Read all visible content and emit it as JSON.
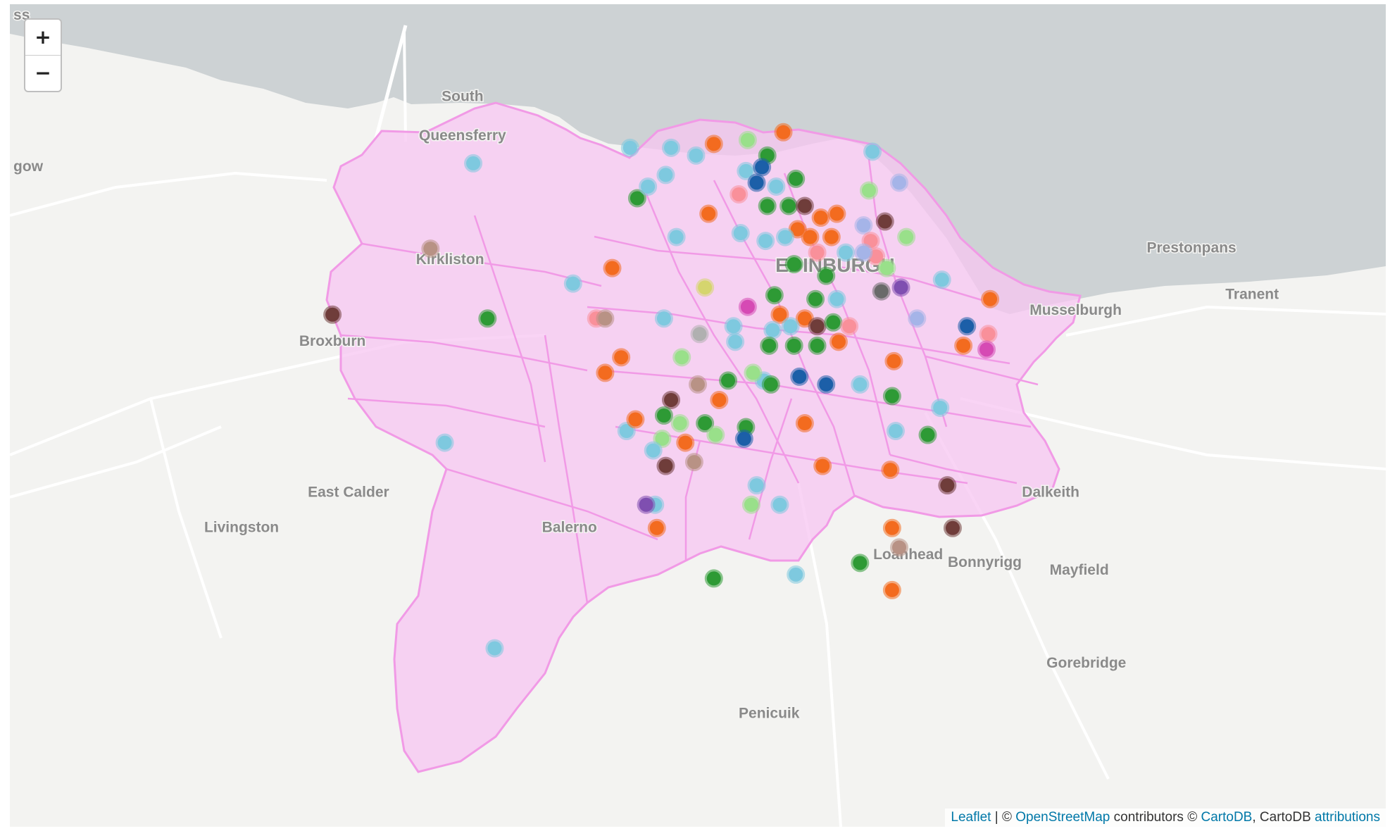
{
  "map": {
    "zoom_in_label": "+",
    "zoom_out_label": "−",
    "place_labels": [
      {
        "text": "South",
        "lon": -3.398,
        "lat": 55.997
      },
      {
        "text": "Queensferry",
        "lon": -3.398,
        "lat": 55.987
      },
      {
        "text": "Kirkliston",
        "lon": -3.405,
        "lat": 55.955
      },
      {
        "text": "Broxburn",
        "lon": -3.471,
        "lat": 55.934
      },
      {
        "text": "East Calder",
        "lon": -3.462,
        "lat": 55.895
      },
      {
        "text": "Livingston",
        "lon": -3.522,
        "lat": 55.886
      },
      {
        "text": "Balerno",
        "lon": -3.338,
        "lat": 55.886
      },
      {
        "text": "EDINBURGH",
        "lon": -3.189,
        "lat": 55.953
      },
      {
        "text": "Musselburgh",
        "lon": -3.054,
        "lat": 55.942
      },
      {
        "text": "Prestonpans",
        "lon": -2.989,
        "lat": 55.958
      },
      {
        "text": "Tranent",
        "lon": -2.955,
        "lat": 55.946
      },
      {
        "text": "Dalkeith",
        "lon": -3.068,
        "lat": 55.895
      },
      {
        "text": "Loanhead",
        "lon": -3.148,
        "lat": 55.879
      },
      {
        "text": "Bonnyrigg",
        "lon": -3.105,
        "lat": 55.877
      },
      {
        "text": "Mayfield",
        "lon": -3.052,
        "lat": 55.875
      },
      {
        "text": "Gorebridge",
        "lon": -3.048,
        "lat": 55.851
      },
      {
        "text": "Penicuik",
        "lon": -3.226,
        "lat": 55.838
      },
      {
        "text": "gow",
        "lon": -3.65,
        "lat": 55.979
      },
      {
        "text": "ss",
        "lon": -3.65,
        "lat": 56.018
      }
    ],
    "bounds": {
      "lon_min": -3.652,
      "lon_max": -2.88,
      "lat_min": 55.81,
      "lat_max": 56.022
    },
    "colors": {
      "water": "#cdd2d4",
      "land": "#f3f3f1",
      "region_fill": "#f7c6f2",
      "region_stroke": "#f19ae6",
      "marker_stroke": "#ffffff"
    },
    "markers": [
      {
        "lon": -3.392,
        "lat": 55.981,
        "c": "#7ec9df"
      },
      {
        "lon": -3.304,
        "lat": 55.985,
        "c": "#7ec9df"
      },
      {
        "lon": -3.416,
        "lat": 55.959,
        "c": "#b89285"
      },
      {
        "lon": -3.471,
        "lat": 55.942,
        "c": "#6f3d3a"
      },
      {
        "lon": -3.384,
        "lat": 55.941,
        "c": "#2e9a35"
      },
      {
        "lon": -3.408,
        "lat": 55.909,
        "c": "#7ec9df"
      },
      {
        "lon": -3.38,
        "lat": 55.856,
        "c": "#7ec9df"
      },
      {
        "lon": -3.306,
        "lat": 55.912,
        "c": "#7ec9df"
      },
      {
        "lon": -3.29,
        "lat": 55.893,
        "c": "#7ec9df"
      },
      {
        "lon": -3.229,
        "lat": 55.925,
        "c": "#7ec9df"
      },
      {
        "lon": -3.239,
        "lat": 55.913,
        "c": "#2e9a35"
      },
      {
        "lon": -3.233,
        "lat": 55.898,
        "c": "#7ec9df"
      },
      {
        "lon": -3.284,
        "lat": 55.978,
        "c": "#7ec9df"
      },
      {
        "lon": -3.3,
        "lat": 55.972,
        "c": "#2e9a35"
      },
      {
        "lon": -3.314,
        "lat": 55.954,
        "c": "#f36b1f"
      },
      {
        "lon": -3.309,
        "lat": 55.931,
        "c": "#f36b1f"
      },
      {
        "lon": -3.294,
        "lat": 55.975,
        "c": "#7ec9df"
      },
      {
        "lon": -3.281,
        "lat": 55.985,
        "c": "#7ec9df"
      },
      {
        "lon": -3.267,
        "lat": 55.983,
        "c": "#7ec9df"
      },
      {
        "lon": -3.257,
        "lat": 55.986,
        "c": "#f36b1f"
      },
      {
        "lon": -3.238,
        "lat": 55.987,
        "c": "#99e08a"
      },
      {
        "lon": -3.218,
        "lat": 55.989,
        "c": "#f36b1f"
      },
      {
        "lon": -3.227,
        "lat": 55.983,
        "c": "#2e9a35"
      },
      {
        "lon": -3.239,
        "lat": 55.979,
        "c": "#7ec9df"
      },
      {
        "lon": -3.23,
        "lat": 55.98,
        "c": "#1c5fa8"
      },
      {
        "lon": -3.233,
        "lat": 55.976,
        "c": "#1c5fa8"
      },
      {
        "lon": -3.243,
        "lat": 55.973,
        "c": "#f9909a"
      },
      {
        "lon": -3.222,
        "lat": 55.975,
        "c": "#7ec9df"
      },
      {
        "lon": -3.211,
        "lat": 55.977,
        "c": "#2e9a35"
      },
      {
        "lon": -3.168,
        "lat": 55.984,
        "c": "#7ec9df"
      },
      {
        "lon": -3.17,
        "lat": 55.974,
        "c": "#99e08a"
      },
      {
        "lon": -3.153,
        "lat": 55.976,
        "c": "#a5b4e8"
      },
      {
        "lon": -3.26,
        "lat": 55.968,
        "c": "#f36b1f"
      },
      {
        "lon": -3.227,
        "lat": 55.97,
        "c": "#2e9a35"
      },
      {
        "lon": -3.215,
        "lat": 55.97,
        "c": "#2e9a35"
      },
      {
        "lon": -3.206,
        "lat": 55.97,
        "c": "#6f3d3a"
      },
      {
        "lon": -3.197,
        "lat": 55.967,
        "c": "#f36b1f"
      },
      {
        "lon": -3.188,
        "lat": 55.968,
        "c": "#f36b1f"
      },
      {
        "lon": -3.173,
        "lat": 55.965,
        "c": "#a5b4e8"
      },
      {
        "lon": -3.161,
        "lat": 55.966,
        "c": "#6f3d3a"
      },
      {
        "lon": -3.169,
        "lat": 55.961,
        "c": "#f9909a"
      },
      {
        "lon": -3.166,
        "lat": 55.957,
        "c": "#f9909a"
      },
      {
        "lon": -3.149,
        "lat": 55.962,
        "c": "#99e08a"
      },
      {
        "lon": -3.21,
        "lat": 55.964,
        "c": "#f36b1f"
      },
      {
        "lon": -3.203,
        "lat": 55.962,
        "c": "#f36b1f"
      },
      {
        "lon": -3.199,
        "lat": 55.958,
        "c": "#f9909a"
      },
      {
        "lon": -3.191,
        "lat": 55.962,
        "c": "#f36b1f"
      },
      {
        "lon": -3.183,
        "lat": 55.958,
        "c": "#7ec9df"
      },
      {
        "lon": -3.173,
        "lat": 55.958,
        "c": "#a5b4e8"
      },
      {
        "lon": -3.242,
        "lat": 55.963,
        "c": "#7ec9df"
      },
      {
        "lon": -3.228,
        "lat": 55.961,
        "c": "#7ec9df"
      },
      {
        "lon": -3.217,
        "lat": 55.962,
        "c": "#7ec9df"
      },
      {
        "lon": -3.278,
        "lat": 55.962,
        "c": "#7ec9df"
      },
      {
        "lon": -3.212,
        "lat": 55.955,
        "c": "#2e9a35"
      },
      {
        "lon": -3.194,
        "lat": 55.952,
        "c": "#2e9a35"
      },
      {
        "lon": -3.16,
        "lat": 55.954,
        "c": "#99e08a"
      },
      {
        "lon": -3.163,
        "lat": 55.948,
        "c": "#6a6a6a"
      },
      {
        "lon": -3.152,
        "lat": 55.949,
        "c": "#7f4fb0"
      },
      {
        "lon": -3.129,
        "lat": 55.951,
        "c": "#7ec9df"
      },
      {
        "lon": -3.262,
        "lat": 55.949,
        "c": "#d5d56e"
      },
      {
        "lon": -3.223,
        "lat": 55.947,
        "c": "#2e9a35"
      },
      {
        "lon": -3.2,
        "lat": 55.946,
        "c": "#2e9a35"
      },
      {
        "lon": -3.188,
        "lat": 55.946,
        "c": "#7ec9df"
      },
      {
        "lon": -3.238,
        "lat": 55.944,
        "c": "#d64ab4"
      },
      {
        "lon": -3.22,
        "lat": 55.942,
        "c": "#f36b1f"
      },
      {
        "lon": -3.206,
        "lat": 55.941,
        "c": "#f36b1f"
      },
      {
        "lon": -3.199,
        "lat": 55.939,
        "c": "#6f3d3a"
      },
      {
        "lon": -3.19,
        "lat": 55.94,
        "c": "#2e9a35"
      },
      {
        "lon": -3.181,
        "lat": 55.939,
        "c": "#f9909a"
      },
      {
        "lon": -3.246,
        "lat": 55.939,
        "c": "#7ec9df"
      },
      {
        "lon": -3.224,
        "lat": 55.938,
        "c": "#7ec9df"
      },
      {
        "lon": -3.214,
        "lat": 55.939,
        "c": "#7ec9df"
      },
      {
        "lon": -3.143,
        "lat": 55.941,
        "c": "#a5b4e8"
      },
      {
        "lon": -3.115,
        "lat": 55.939,
        "c": "#1c5fa8"
      },
      {
        "lon": -3.102,
        "lat": 55.946,
        "c": "#f36b1f"
      },
      {
        "lon": -3.103,
        "lat": 55.937,
        "c": "#f9909a"
      },
      {
        "lon": -3.336,
        "lat": 55.95,
        "c": "#7ec9df"
      },
      {
        "lon": -3.323,
        "lat": 55.941,
        "c": "#f9909a"
      },
      {
        "lon": -3.318,
        "lat": 55.941,
        "c": "#b89285"
      },
      {
        "lon": -3.285,
        "lat": 55.941,
        "c": "#7ec9df"
      },
      {
        "lon": -3.265,
        "lat": 55.937,
        "c": "#b0b0b0"
      },
      {
        "lon": -3.245,
        "lat": 55.935,
        "c": "#7ec9df"
      },
      {
        "lon": -3.226,
        "lat": 55.934,
        "c": "#2e9a35"
      },
      {
        "lon": -3.212,
        "lat": 55.934,
        "c": "#2e9a35"
      },
      {
        "lon": -3.199,
        "lat": 55.934,
        "c": "#2e9a35"
      },
      {
        "lon": -3.187,
        "lat": 55.935,
        "c": "#f36b1f"
      },
      {
        "lon": -3.275,
        "lat": 55.931,
        "c": "#99e08a"
      },
      {
        "lon": -3.318,
        "lat": 55.927,
        "c": "#f36b1f"
      },
      {
        "lon": -3.235,
        "lat": 55.927,
        "c": "#99e08a"
      },
      {
        "lon": -3.249,
        "lat": 55.925,
        "c": "#2e9a35"
      },
      {
        "lon": -3.225,
        "lat": 55.924,
        "c": "#2e9a35"
      },
      {
        "lon": -3.209,
        "lat": 55.926,
        "c": "#1c5fa8"
      },
      {
        "lon": -3.194,
        "lat": 55.924,
        "c": "#1c5fa8"
      },
      {
        "lon": -3.175,
        "lat": 55.924,
        "c": "#7ec9df"
      },
      {
        "lon": -3.156,
        "lat": 55.93,
        "c": "#f36b1f"
      },
      {
        "lon": -3.157,
        "lat": 55.921,
        "c": "#2e9a35"
      },
      {
        "lon": -3.266,
        "lat": 55.924,
        "c": "#b89285"
      },
      {
        "lon": -3.254,
        "lat": 55.92,
        "c": "#f36b1f"
      },
      {
        "lon": -3.281,
        "lat": 55.92,
        "c": "#6f3d3a"
      },
      {
        "lon": -3.301,
        "lat": 55.915,
        "c": "#f36b1f"
      },
      {
        "lon": -3.285,
        "lat": 55.916,
        "c": "#2e9a35"
      },
      {
        "lon": -3.276,
        "lat": 55.914,
        "c": "#99e08a"
      },
      {
        "lon": -3.262,
        "lat": 55.914,
        "c": "#2e9a35"
      },
      {
        "lon": -3.286,
        "lat": 55.91,
        "c": "#99e08a"
      },
      {
        "lon": -3.273,
        "lat": 55.909,
        "c": "#f36b1f"
      },
      {
        "lon": -3.256,
        "lat": 55.911,
        "c": "#99e08a"
      },
      {
        "lon": -3.24,
        "lat": 55.91,
        "c": "#1c5fa8"
      },
      {
        "lon": -3.206,
        "lat": 55.914,
        "c": "#f36b1f"
      },
      {
        "lon": -3.155,
        "lat": 55.912,
        "c": "#7ec9df"
      },
      {
        "lon": -3.13,
        "lat": 55.918,
        "c": "#7ec9df"
      },
      {
        "lon": -3.137,
        "lat": 55.911,
        "c": "#2e9a35"
      },
      {
        "lon": -3.291,
        "lat": 55.907,
        "c": "#7ec9df"
      },
      {
        "lon": -3.284,
        "lat": 55.903,
        "c": "#6f3d3a"
      },
      {
        "lon": -3.268,
        "lat": 55.904,
        "c": "#b89285"
      },
      {
        "lon": -3.196,
        "lat": 55.903,
        "c": "#f36b1f"
      },
      {
        "lon": -3.158,
        "lat": 55.902,
        "c": "#f36b1f"
      },
      {
        "lon": -3.126,
        "lat": 55.898,
        "c": "#6f3d3a"
      },
      {
        "lon": -3.295,
        "lat": 55.893,
        "c": "#7f4fb0"
      },
      {
        "lon": -3.289,
        "lat": 55.887,
        "c": "#f36b1f"
      },
      {
        "lon": -3.236,
        "lat": 55.893,
        "c": "#99e08a"
      },
      {
        "lon": -3.22,
        "lat": 55.893,
        "c": "#7ec9df"
      },
      {
        "lon": -3.157,
        "lat": 55.887,
        "c": "#f36b1f"
      },
      {
        "lon": -3.153,
        "lat": 55.882,
        "c": "#b89285"
      },
      {
        "lon": -3.123,
        "lat": 55.887,
        "c": "#6f3d3a"
      },
      {
        "lon": -3.175,
        "lat": 55.878,
        "c": "#2e9a35"
      },
      {
        "lon": -3.257,
        "lat": 55.874,
        "c": "#2e9a35"
      },
      {
        "lon": -3.211,
        "lat": 55.875,
        "c": "#7ec9df"
      },
      {
        "lon": -3.157,
        "lat": 55.871,
        "c": "#f36b1f"
      },
      {
        "lon": -3.104,
        "lat": 55.933,
        "c": "#d64ab4"
      },
      {
        "lon": -3.117,
        "lat": 55.934,
        "c": "#f36b1f"
      }
    ]
  },
  "attribution": {
    "leaflet": "Leaflet",
    "sep1": " | © ",
    "osm": "OpenStreetMap",
    "mid": " contributors © ",
    "cartodb": "CartoDB",
    "mid2": ", CartoDB ",
    "attributions": "attributions"
  }
}
